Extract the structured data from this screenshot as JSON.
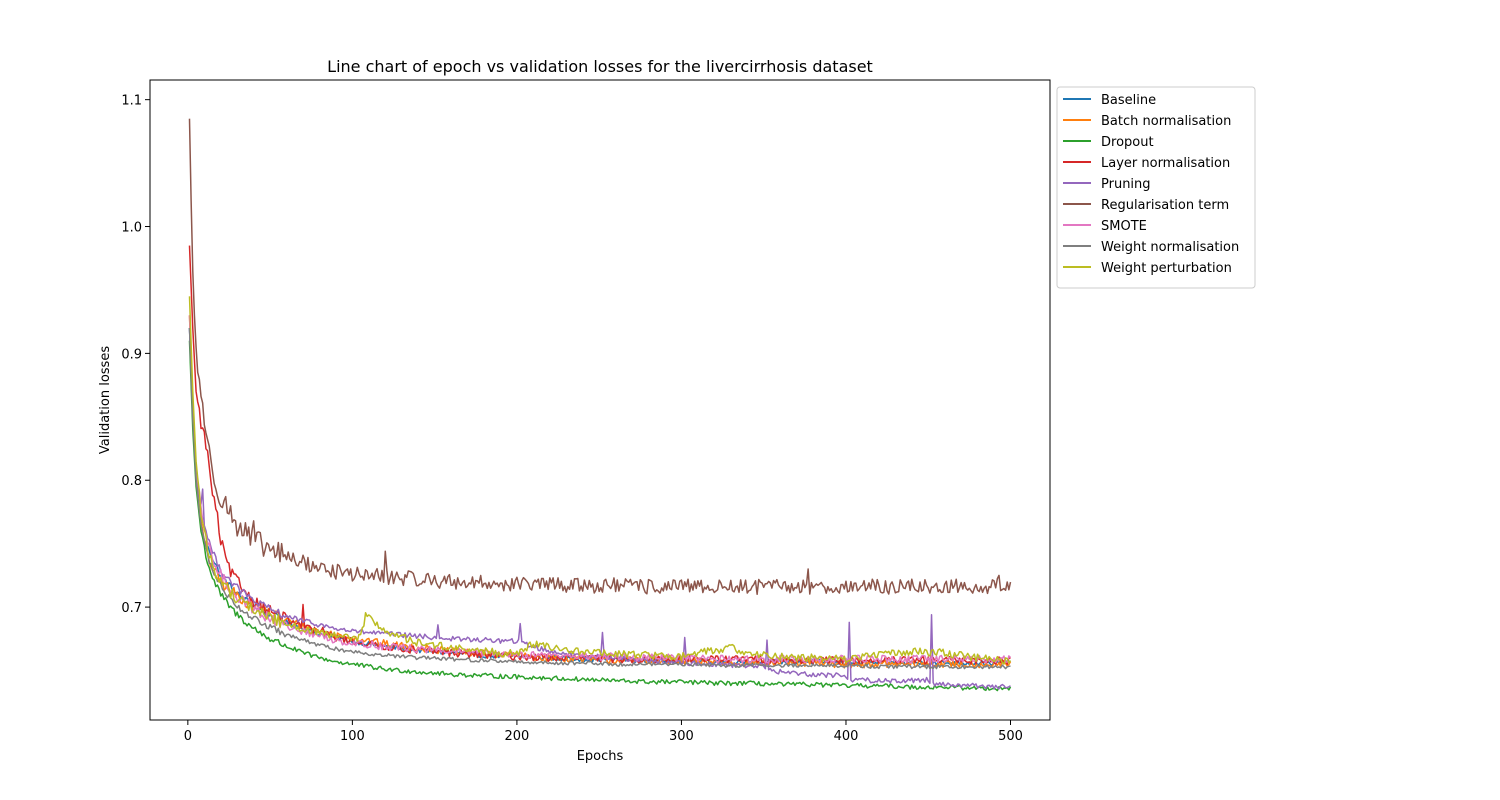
{
  "chart_data": {
    "type": "line",
    "title": "Line chart of epoch vs validation losses for the livercirrhosis dataset",
    "xlabel": "Epochs",
    "ylabel": "Validation losses",
    "xlim": [
      -23,
      524
    ],
    "ylim": [
      0.611,
      1.1155
    ],
    "xticks": [
      0,
      100,
      200,
      300,
      400,
      500
    ],
    "yticks": [
      0.7,
      0.8,
      0.9,
      1.0,
      1.1
    ],
    "ytick_labels": [
      "0.7",
      "0.8",
      "0.9",
      "1.0",
      "1.1"
    ],
    "grid": false,
    "legend_position": "outside-top-right",
    "series": [
      {
        "name": "Baseline",
        "color": "#1f77b4",
        "x": [
          1,
          3,
          5,
          8,
          12,
          16,
          20,
          25,
          30,
          40,
          50,
          60,
          70,
          80,
          90,
          100,
          120,
          140,
          160,
          180,
          200,
          220,
          240,
          260,
          280,
          300,
          320,
          340,
          360,
          380,
          400,
          420,
          440,
          460,
          480,
          500
        ],
        "y": [
          0.92,
          0.86,
          0.81,
          0.775,
          0.75,
          0.735,
          0.725,
          0.717,
          0.71,
          0.701,
          0.694,
          0.688,
          0.683,
          0.679,
          0.676,
          0.673,
          0.669,
          0.666,
          0.664,
          0.662,
          0.661,
          0.66,
          0.659,
          0.659,
          0.658,
          0.658,
          0.657,
          0.657,
          0.657,
          0.657,
          0.656,
          0.656,
          0.656,
          0.656,
          0.656,
          0.656
        ],
        "noise": 0.002
      },
      {
        "name": "Batch normalisation",
        "color": "#ff7f0e",
        "x": [
          1,
          3,
          5,
          8,
          12,
          16,
          20,
          25,
          30,
          40,
          50,
          60,
          70,
          80,
          90,
          100,
          120,
          140,
          160,
          180,
          200,
          220,
          240,
          260,
          280,
          300,
          320,
          340,
          360,
          380,
          400,
          420,
          440,
          460,
          480,
          500
        ],
        "y": [
          0.93,
          0.85,
          0.8,
          0.765,
          0.74,
          0.728,
          0.72,
          0.714,
          0.709,
          0.701,
          0.695,
          0.69,
          0.685,
          0.681,
          0.678,
          0.676,
          0.671,
          0.668,
          0.665,
          0.663,
          0.662,
          0.66,
          0.659,
          0.658,
          0.658,
          0.657,
          0.657,
          0.656,
          0.656,
          0.656,
          0.655,
          0.655,
          0.655,
          0.655,
          0.655,
          0.655
        ],
        "noise": 0.003
      },
      {
        "name": "Dropout",
        "color": "#2ca02c",
        "x": [
          1,
          3,
          5,
          8,
          12,
          16,
          20,
          25,
          30,
          40,
          50,
          60,
          70,
          80,
          90,
          100,
          120,
          140,
          160,
          180,
          200,
          220,
          240,
          260,
          280,
          300,
          320,
          340,
          360,
          380,
          400,
          420,
          440,
          460,
          480,
          500
        ],
        "y": [
          0.91,
          0.84,
          0.795,
          0.76,
          0.735,
          0.72,
          0.71,
          0.701,
          0.694,
          0.683,
          0.675,
          0.669,
          0.664,
          0.66,
          0.657,
          0.655,
          0.651,
          0.649,
          0.647,
          0.646,
          0.645,
          0.644,
          0.643,
          0.642,
          0.641,
          0.641,
          0.64,
          0.64,
          0.639,
          0.639,
          0.638,
          0.638,
          0.637,
          0.637,
          0.636,
          0.636
        ],
        "noise": 0.0018
      },
      {
        "name": "Layer normalisation",
        "color": "#d62728",
        "x": [
          1,
          3,
          5,
          8,
          10,
          12,
          15,
          18,
          20,
          25,
          30,
          40,
          50,
          60,
          70,
          80,
          90,
          100,
          120,
          140,
          160,
          180,
          200,
          220,
          240,
          260,
          280,
          300,
          320,
          340,
          360,
          380,
          400,
          420,
          440,
          460,
          480,
          500
        ],
        "y": [
          0.985,
          0.92,
          0.87,
          0.845,
          0.835,
          0.82,
          0.79,
          0.77,
          0.752,
          0.73,
          0.72,
          0.705,
          0.697,
          0.69,
          0.684,
          0.68,
          0.676,
          0.673,
          0.669,
          0.666,
          0.664,
          0.662,
          0.661,
          0.66,
          0.66,
          0.659,
          0.659,
          0.659,
          0.659,
          0.659,
          0.658,
          0.658,
          0.658,
          0.658,
          0.658,
          0.658,
          0.658,
          0.658
        ],
        "noise": 0.003,
        "spikes": [
          [
            70,
            0.702
          ],
          [
            58,
            0.696
          ],
          [
            82,
            0.684
          ]
        ]
      },
      {
        "name": "Pruning",
        "color": "#9467bd",
        "x": [
          1,
          3,
          5,
          8,
          12,
          16,
          20,
          25,
          30,
          40,
          50,
          60,
          70,
          80,
          90,
          100,
          120,
          140,
          160,
          180,
          200,
          220,
          240,
          260,
          280,
          300,
          320,
          340,
          350,
          352,
          360,
          380,
          400,
          402,
          420,
          440,
          450,
          452,
          460,
          480,
          500
        ],
        "y": [
          0.92,
          0.85,
          0.805,
          0.78,
          0.755,
          0.74,
          0.73,
          0.722,
          0.715,
          0.705,
          0.698,
          0.693,
          0.689,
          0.686,
          0.683,
          0.681,
          0.679,
          0.677,
          0.675,
          0.674,
          0.673,
          0.665,
          0.662,
          0.66,
          0.658,
          0.656,
          0.655,
          0.654,
          0.654,
          0.65,
          0.649,
          0.647,
          0.646,
          0.643,
          0.642,
          0.642,
          0.643,
          0.64,
          0.639,
          0.638,
          0.637
        ],
        "noise": 0.002,
        "spikes": [
          [
            9,
            0.793
          ],
          [
            152,
            0.686
          ],
          [
            202,
            0.687
          ],
          [
            252,
            0.68
          ],
          [
            302,
            0.676
          ],
          [
            352,
            0.674
          ],
          [
            402,
            0.688
          ],
          [
            452,
            0.694
          ]
        ]
      },
      {
        "name": "Regularisation term",
        "color": "#8c564b",
        "x": [
          1,
          2,
          3,
          4,
          5,
          6,
          8,
          10,
          12,
          15,
          18,
          20,
          25,
          30,
          35,
          40,
          50,
          60,
          70,
          80,
          90,
          100,
          120,
          140,
          160,
          180,
          200,
          220,
          240,
          260,
          280,
          300,
          320,
          340,
          360,
          380,
          400,
          420,
          440,
          460,
          480,
          500
        ],
        "y": [
          1.085,
          1.02,
          0.965,
          0.93,
          0.905,
          0.885,
          0.87,
          0.85,
          0.825,
          0.81,
          0.795,
          0.788,
          0.775,
          0.765,
          0.758,
          0.752,
          0.745,
          0.74,
          0.735,
          0.731,
          0.728,
          0.726,
          0.724,
          0.722,
          0.72,
          0.719,
          0.718,
          0.718,
          0.717,
          0.717,
          0.716,
          0.716,
          0.716,
          0.716,
          0.716,
          0.716,
          0.716,
          0.716,
          0.716,
          0.716,
          0.716,
          0.717
        ],
        "noise": 0.006,
        "spikes": [
          [
            120,
            0.744
          ],
          [
            40,
            0.768
          ],
          [
            377,
            0.73
          ],
          [
            493,
            0.725
          ]
        ]
      },
      {
        "name": "SMOTE",
        "color": "#e377c2",
        "x": [
          1,
          3,
          5,
          8,
          12,
          16,
          20,
          25,
          30,
          40,
          50,
          60,
          70,
          80,
          90,
          100,
          120,
          140,
          160,
          180,
          200,
          220,
          240,
          260,
          280,
          300,
          320,
          340,
          360,
          380,
          400,
          420,
          440,
          460,
          480,
          500
        ],
        "y": [
          0.93,
          0.86,
          0.81,
          0.775,
          0.75,
          0.735,
          0.725,
          0.716,
          0.709,
          0.699,
          0.691,
          0.685,
          0.681,
          0.677,
          0.674,
          0.672,
          0.669,
          0.667,
          0.665,
          0.664,
          0.663,
          0.662,
          0.661,
          0.661,
          0.66,
          0.66,
          0.659,
          0.659,
          0.659,
          0.659,
          0.659,
          0.659,
          0.659,
          0.659,
          0.659,
          0.659
        ],
        "noise": 0.003
      },
      {
        "name": "Weight normalisation",
        "color": "#7f7f7f",
        "x": [
          1,
          3,
          5,
          8,
          12,
          16,
          20,
          25,
          30,
          40,
          50,
          60,
          70,
          80,
          90,
          100,
          120,
          140,
          160,
          180,
          200,
          220,
          240,
          260,
          280,
          300,
          320,
          340,
          360,
          380,
          400,
          420,
          440,
          460,
          480,
          500
        ],
        "y": [
          0.92,
          0.85,
          0.8,
          0.765,
          0.74,
          0.726,
          0.717,
          0.708,
          0.701,
          0.691,
          0.684,
          0.678,
          0.674,
          0.67,
          0.667,
          0.665,
          0.662,
          0.66,
          0.659,
          0.658,
          0.657,
          0.656,
          0.656,
          0.655,
          0.655,
          0.655,
          0.654,
          0.654,
          0.654,
          0.654,
          0.654,
          0.653,
          0.653,
          0.653,
          0.653,
          0.653
        ],
        "noise": 0.0015
      },
      {
        "name": "Weight perturbation",
        "color": "#bcbd22",
        "x": [
          1,
          3,
          5,
          8,
          12,
          16,
          20,
          25,
          30,
          40,
          50,
          60,
          70,
          80,
          90,
          100,
          105,
          108,
          112,
          120,
          130,
          140,
          160,
          180,
          200,
          210,
          220,
          240,
          260,
          280,
          300,
          320,
          330,
          340,
          360,
          380,
          400,
          420,
          440,
          460,
          480,
          500
        ],
        "y": [
          0.945,
          0.87,
          0.815,
          0.775,
          0.745,
          0.73,
          0.72,
          0.713,
          0.707,
          0.698,
          0.692,
          0.687,
          0.683,
          0.679,
          0.677,
          0.676,
          0.676,
          0.693,
          0.69,
          0.681,
          0.676,
          0.672,
          0.668,
          0.665,
          0.663,
          0.671,
          0.668,
          0.665,
          0.663,
          0.662,
          0.661,
          0.666,
          0.668,
          0.664,
          0.661,
          0.66,
          0.659,
          0.663,
          0.665,
          0.664,
          0.66,
          0.657
        ],
        "noise": 0.003
      }
    ]
  }
}
